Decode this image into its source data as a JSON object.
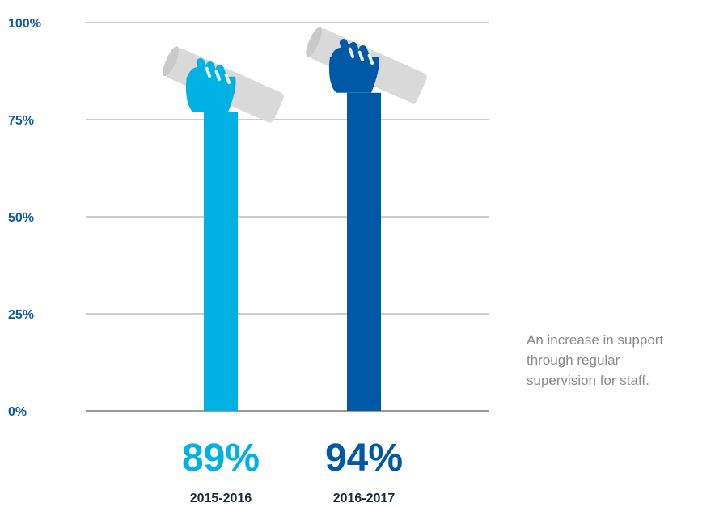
{
  "chart_data": {
    "type": "bar",
    "categories": [
      "2015-2016",
      "2016-2017"
    ],
    "values": [
      89,
      94
    ],
    "value_labels": [
      "89%",
      "94%"
    ],
    "ylim": [
      0,
      100
    ],
    "yticks": [
      0,
      25,
      50,
      75,
      100
    ],
    "ytick_labels": [
      "0%",
      "25%",
      "50%",
      "75%",
      "100%"
    ],
    "grid": true,
    "bar_colors": [
      "#00b2e3",
      "#0059a6"
    ]
  },
  "caption": {
    "lines": [
      "An increase in support",
      "through regular",
      "supervision for staff."
    ]
  },
  "colors": {
    "axis_text": "#0b5aa5",
    "gridline": "#9a9a9a",
    "scroll": "#d9d9d9",
    "caption_text": "#8a8a8a"
  },
  "icons": [
    "raised-fist-icon",
    "scroll-icon"
  ]
}
